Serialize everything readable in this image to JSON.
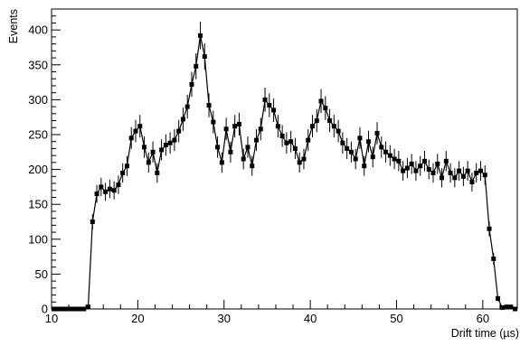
{
  "chart_data": {
    "type": "scatter",
    "style": "histogram with error bars, square markers",
    "title": "",
    "xlabel": "Drift time (µs)",
    "ylabel": "Events",
    "xlim": [
      10,
      64
    ],
    "ylim": [
      0,
      430
    ],
    "xticks": [
      10,
      20,
      30,
      40,
      50,
      60
    ],
    "yticks": [
      0,
      50,
      100,
      150,
      200,
      250,
      300,
      350,
      400
    ],
    "grid": false,
    "legend": "none",
    "colors": {
      "marker": "#000000",
      "errorbar": "#000000",
      "line": "#000000",
      "frame": "#000000"
    },
    "series": [
      {
        "x": [
          10.25,
          10.75,
          11.25,
          11.75,
          12.25,
          12.75,
          13.25,
          13.75,
          14.25,
          14.75,
          15.25,
          15.75,
          16.25,
          16.75,
          17.25,
          17.75,
          18.25,
          18.75,
          19.25,
          19.75,
          20.25,
          20.75,
          21.25,
          21.75,
          22.25,
          22.75,
          23.25,
          23.75,
          24.25,
          24.75,
          25.25,
          25.75,
          26.25,
          26.75,
          27.25,
          27.75,
          28.25,
          28.75,
          29.25,
          29.75,
          30.25,
          30.75,
          31.25,
          31.75,
          32.25,
          32.75,
          33.25,
          33.75,
          34.25,
          34.75,
          35.25,
          35.75,
          36.25,
          36.75,
          37.25,
          37.75,
          38.25,
          38.75,
          39.25,
          39.75,
          40.25,
          40.75,
          41.25,
          41.75,
          42.25,
          42.75,
          43.25,
          43.75,
          44.25,
          44.75,
          45.25,
          45.75,
          46.25,
          46.75,
          47.25,
          47.75,
          48.25,
          48.75,
          49.25,
          49.75,
          50.25,
          50.75,
          51.25,
          51.75,
          52.25,
          52.75,
          53.25,
          53.75,
          54.25,
          54.75,
          55.25,
          55.75,
          56.25,
          56.75,
          57.25,
          57.75,
          58.25,
          58.75,
          59.25,
          59.75,
          60.25,
          60.75,
          61.25,
          61.75,
          62.25,
          62.75,
          63.25,
          63.75
        ],
        "values": [
          0,
          0,
          0,
          0,
          0,
          0,
          0,
          0,
          3,
          125,
          165,
          175,
          168,
          172,
          170,
          178,
          195,
          205,
          245,
          255,
          262,
          232,
          210,
          225,
          195,
          228,
          235,
          238,
          242,
          255,
          272,
          290,
          322,
          348,
          392,
          362,
          292,
          268,
          232,
          210,
          258,
          225,
          262,
          265,
          215,
          232,
          205,
          242,
          258,
          300,
          292,
          285,
          262,
          248,
          238,
          240,
          230,
          210,
          215,
          242,
          262,
          270,
          298,
          288,
          270,
          262,
          255,
          238,
          230,
          225,
          215,
          245,
          205,
          240,
          218,
          252,
          232,
          225,
          220,
          215,
          212,
          198,
          202,
          208,
          198,
          205,
          212,
          200,
          195,
          208,
          188,
          212,
          195,
          188,
          198,
          190,
          198,
          182,
          195,
          198,
          192,
          115,
          72,
          15,
          2,
          3,
          3,
          0
        ]
      }
    ]
  }
}
